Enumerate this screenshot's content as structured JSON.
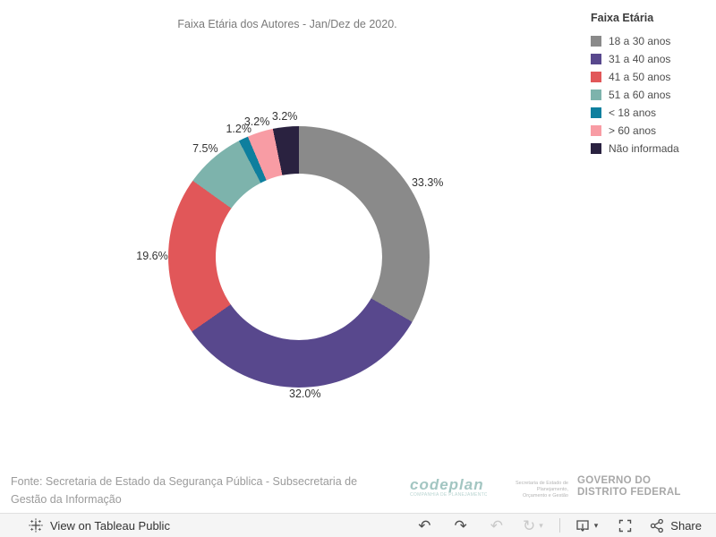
{
  "title": "Faixa Etária dos Autores - Jan/Dez de 2020.",
  "legend": {
    "title": "Faixa Etária",
    "items": [
      {
        "label": "18 a 30 anos",
        "color": "#8a8a8a"
      },
      {
        "label": "31 a 40 anos",
        "color": "#58488d"
      },
      {
        "label": "41 a 50 anos",
        "color": "#e15759"
      },
      {
        "label": "51 a 60 anos",
        "color": "#7db3ac"
      },
      {
        "label": "< 18 anos",
        "color": "#0e7f9e"
      },
      {
        "label": "> 60 anos",
        "color": "#f89ca4"
      },
      {
        "label": "Não informada",
        "color": "#2a2240"
      }
    ]
  },
  "chart_data": {
    "type": "pie",
    "donut": true,
    "title": "Faixa Etária dos Autores - Jan/Dez de 2020.",
    "categories": [
      "18 a 30 anos",
      "31 a 40 anos",
      "41 a 50 anos",
      "51 a 60 anos",
      "< 18 anos",
      "> 60 anos",
      "Não informada"
    ],
    "values": [
      33.3,
      32.0,
      19.6,
      7.5,
      1.2,
      3.2,
      3.2
    ],
    "labels": [
      "33.3%",
      "32.0%",
      "19.6%",
      "7.5%",
      "1.2%",
      "3.2%",
      "3.2%"
    ],
    "colors": [
      "#8a8a8a",
      "#58488d",
      "#e15759",
      "#7db3ac",
      "#0e7f9e",
      "#f89ca4",
      "#2a2240"
    ],
    "start_angle_deg": 0,
    "direction": "clockwise",
    "legend_position": "top-right"
  },
  "footer": {
    "source_text": "Fonte: Secretaria de Estado da Segurança Pública - Subsecretaria de Gestão da Informação",
    "codeplan_logo_text": "codeplan",
    "codeplan_tagline": "COMPANHIA DE PLANEJAMENTO DO DISTRITO FEDERAL",
    "secretaria_line1": "Secretaria de Estado de Planejamento,",
    "secretaria_line2": "Orçamento e Gestão",
    "governo_line1": "GOVERNO DO",
    "governo_line2": "DISTRITO FEDERAL"
  },
  "toolbar": {
    "view_label": "View on Tableau Public",
    "share_label": "Share",
    "icons": [
      "undo",
      "redo",
      "revert",
      "refresh",
      "download",
      "fullscreen",
      "share"
    ]
  }
}
